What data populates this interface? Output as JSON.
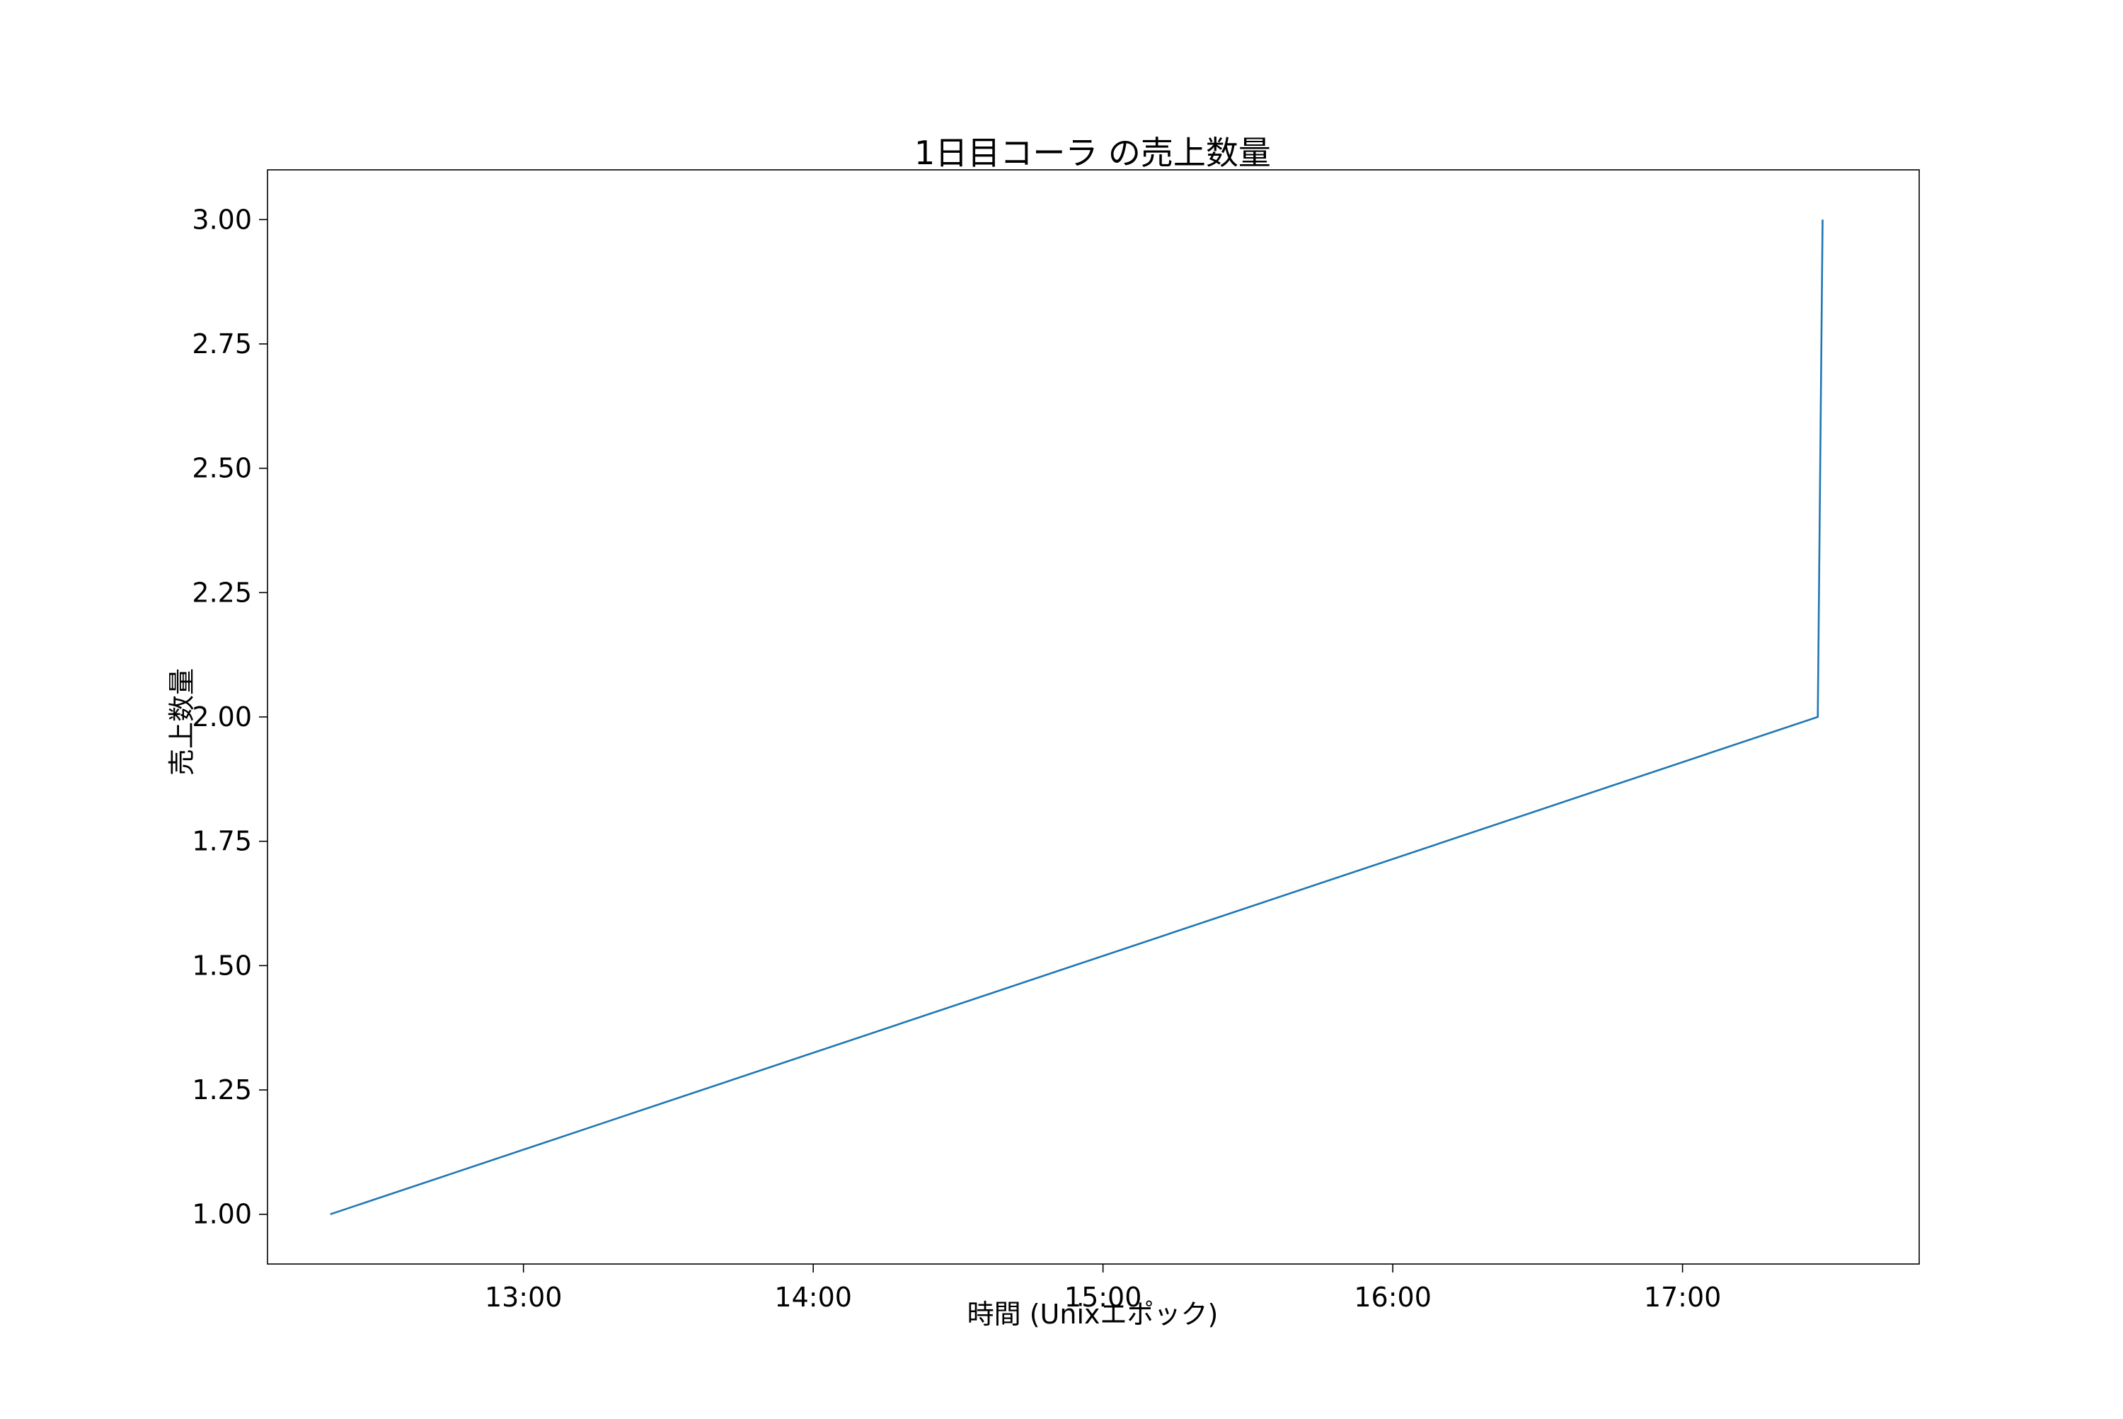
{
  "chart_data": {
    "type": "line",
    "title": "1日目コーラ の売上数量",
    "xlabel": "時間 (Unixエポック)",
    "ylabel": "売上数量",
    "x_ticks": [
      "13:00",
      "14:00",
      "15:00",
      "16:00",
      "17:00"
    ],
    "x_tick_hours": [
      13,
      14,
      15,
      16,
      17
    ],
    "xlim": [
      "12:07",
      "17:49"
    ],
    "ylim": [
      0.9,
      3.1
    ],
    "y_ticks": [
      "1.00",
      "1.25",
      "1.50",
      "1.75",
      "2.00",
      "2.25",
      "2.50",
      "2.75",
      "3.00"
    ],
    "y_tick_values": [
      1.0,
      1.25,
      1.5,
      1.75,
      2.0,
      2.25,
      2.5,
      2.75,
      3.0
    ],
    "grid": false,
    "series": [
      {
        "color": "#1f77b4",
        "x": [
          "12:20",
          "17:28",
          "17:29"
        ],
        "y": [
          1,
          2,
          3
        ]
      }
    ],
    "colors": {
      "line": "#1f77b4",
      "axes": "#000000",
      "background": "#ffffff"
    }
  }
}
